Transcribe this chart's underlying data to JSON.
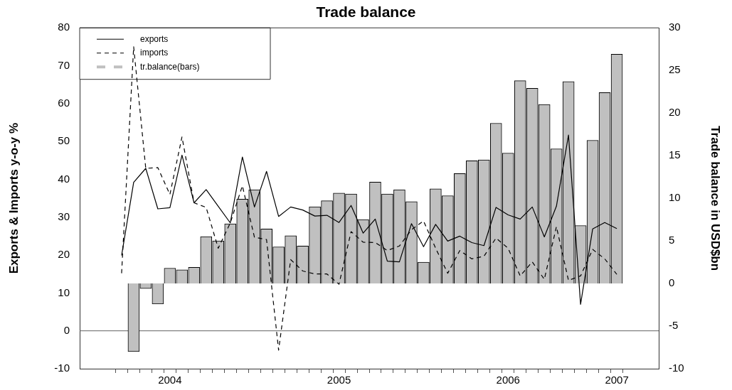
{
  "chart_data": {
    "type": "bar",
    "title": "Trade balance",
    "ylabel": "Exports & Imports y-o-y %",
    "y2label": "Trade balance in USD$bn",
    "categories": [
      null,
      null,
      null,
      null,
      "2004",
      null,
      null,
      null,
      null,
      null,
      null,
      null,
      null,
      null,
      null,
      null,
      null,
      null,
      "2005",
      null,
      null,
      null,
      null,
      null,
      null,
      null,
      null,
      null,
      null,
      null,
      null,
      null,
      "2006",
      null,
      null,
      null,
      null,
      null,
      null,
      null,
      null,
      "2007"
    ],
    "ylim": [
      -10,
      80
    ],
    "yticks": [
      -10,
      0,
      10,
      20,
      30,
      40,
      50,
      60,
      70,
      80
    ],
    "y2lim": [
      -10,
      30
    ],
    "y2ticks": [
      -10,
      -5,
      0,
      5,
      10,
      15,
      20,
      25,
      30
    ],
    "legend": "top left",
    "marker": "none",
    "ref_lines": [
      {
        "axis": "y",
        "value": 0,
        "color": "#606060"
      }
    ],
    "series": [
      {
        "name": "exports",
        "type": "line",
        "line_style": "solid",
        "color": "#000000",
        "values": [
          19.9,
          39.2,
          42.9,
          32.2,
          32.5,
          46.4,
          33.8,
          37.3,
          32.9,
          28.5,
          45.9,
          32.7,
          42.1,
          30.2,
          32.7,
          31.9,
          30.3,
          30.5,
          28.6,
          33.1,
          25.8,
          29.5,
          18.4,
          18.2,
          28.3,
          22.2,
          28.1,
          23.7,
          25,
          23.3,
          22.5,
          32.6,
          30.6,
          29.5,
          32.7,
          24.8,
          32.9,
          51.7,
          7,
          26.9,
          28.6,
          27
        ]
      },
      {
        "name": "imports",
        "type": "line",
        "line_style": "dashed",
        "color": "#000000",
        "values": [
          15.2,
          75,
          42.9,
          43.1,
          36,
          51.2,
          33.8,
          32.6,
          21.8,
          28.5,
          38.3,
          24.7,
          24.1,
          -5.1,
          18.8,
          15.8,
          15,
          15,
          12.3,
          26.2,
          23.4,
          23.3,
          21.2,
          22.4,
          26.7,
          29,
          21.8,
          15.2,
          21.2,
          19,
          19.7,
          24.5,
          21.8,
          14.5,
          18.2,
          13.6,
          27.5,
          13.3,
          14.5,
          21.5,
          19,
          14.9
        ]
      },
      {
        "name": "tr.balance(bars)",
        "axis": "y2",
        "color": "#c0c0c0",
        "values": [
          null,
          -8,
          -0.6,
          -2.4,
          1.8,
          1.6,
          1.9,
          5.5,
          5,
          7,
          9.9,
          11,
          6.4,
          4.3,
          5.6,
          4.4,
          9,
          9.7,
          10.6,
          10.5,
          7.5,
          11.9,
          10.5,
          11,
          9.6,
          2.5,
          11.1,
          10.3,
          12.9,
          14.4,
          14.5,
          18.8,
          15.3,
          23.8,
          22.9,
          21,
          15.8,
          23.7,
          6.8,
          16.8,
          22.4,
          26.9
        ]
      }
    ]
  }
}
